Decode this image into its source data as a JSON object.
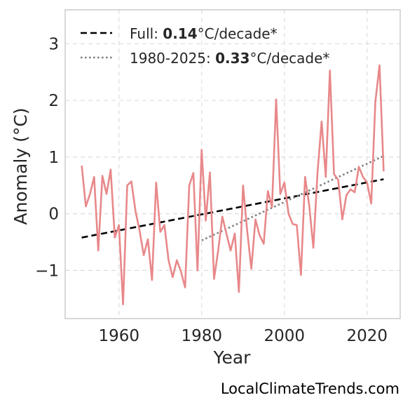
{
  "chart_data": {
    "type": "line",
    "xlabel": "Year",
    "ylabel": "Anomaly (°C)",
    "xlim": [
      1947,
      2028
    ],
    "ylim": [
      -1.85,
      3.6
    ],
    "xticks": [
      1960,
      1980,
      2000,
      2020
    ],
    "yticks": [
      -1,
      0,
      1,
      2,
      3
    ],
    "ytick_labels": [
      "−1",
      "0",
      "1",
      "2",
      "3"
    ],
    "grid": true,
    "legend_position": "top-left",
    "series": [
      {
        "color": "#e8888a",
        "style": "solid",
        "x": [
          1951,
          1952,
          1953,
          1954,
          1955,
          1956,
          1957,
          1958,
          1959,
          1960,
          1961,
          1962,
          1963,
          1964,
          1965,
          1966,
          1967,
          1968,
          1969,
          1970,
          1971,
          1972,
          1973,
          1974,
          1975,
          1976,
          1977,
          1978,
          1979,
          1980,
          1981,
          1982,
          1983,
          1984,
          1985,
          1986,
          1987,
          1988,
          1989,
          1990,
          1991,
          1992,
          1993,
          1994,
          1995,
          1996,
          1997,
          1998,
          1999,
          2000,
          2001,
          2002,
          2003,
          2004,
          2005,
          2006,
          2007,
          2008,
          2009,
          2010,
          2011,
          2012,
          2013,
          2014,
          2015,
          2016,
          2017,
          2018,
          2019,
          2020,
          2021,
          2022,
          2023,
          2024
        ],
        "y": [
          0.85,
          0.13,
          0.35,
          0.65,
          -0.65,
          0.67,
          0.35,
          0.78,
          -0.42,
          -0.2,
          -1.6,
          0.5,
          0.57,
          0.05,
          -0.3,
          -0.73,
          -0.45,
          -1.17,
          0.55,
          -0.32,
          -0.2,
          -0.82,
          -1.12,
          -0.82,
          -1.02,
          -1.3,
          0.5,
          0.72,
          -1.0,
          1.13,
          -0.12,
          0.73,
          -1.15,
          -0.65,
          -0.05,
          -0.35,
          -0.65,
          -0.35,
          -1.38,
          0.5,
          -0.3,
          -0.97,
          -0.1,
          -0.38,
          -0.53,
          0.4,
          0.12,
          2.02,
          0.35,
          0.55,
          0.0,
          -0.18,
          -0.2,
          -1.08,
          0.65,
          0.15,
          -0.6,
          0.72,
          1.63,
          0.65,
          2.53,
          0.7,
          0.6,
          -0.1,
          0.33,
          0.43,
          0.38,
          0.83,
          0.65,
          0.55,
          0.18,
          1.98,
          2.62,
          0.75
        ]
      }
    ],
    "trends": [
      {
        "label_prefix": "Full: ",
        "label_value": "0.14",
        "label_suffix": "°C/decade*",
        "style": "dashed",
        "color": "#000000",
        "x": [
          1951,
          2024
        ],
        "y": [
          -0.42,
          0.61
        ]
      },
      {
        "label_prefix": "1980-2025: ",
        "label_value": "0.33",
        "label_suffix": "°C/decade*",
        "style": "dotted",
        "color": "#808080",
        "x": [
          1980,
          2024
        ],
        "y": [
          -0.47,
          1.02
        ]
      }
    ]
  },
  "credit": "LocalClimateTrends.com"
}
